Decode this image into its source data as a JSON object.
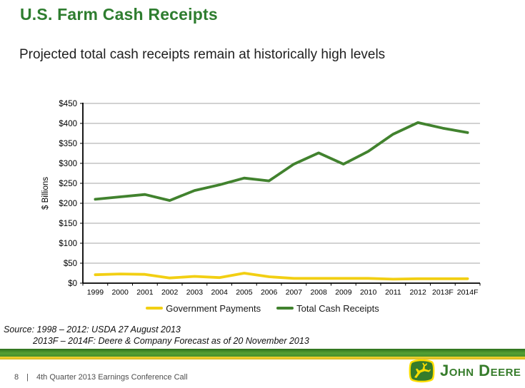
{
  "slide": {
    "title": "U.S. Farm Cash Receipts",
    "subtitle": "Projected total cash receipts remain at historically high levels"
  },
  "chart_data": {
    "type": "line",
    "title": "",
    "xlabel": "",
    "ylabel": "$ Billions",
    "ylim": [
      0,
      450
    ],
    "ytick_step": 50,
    "ytick_labels": [
      "$450",
      "$400",
      "$350",
      "$300",
      "$250",
      "$200",
      "$150",
      "$100",
      "$50",
      "$0"
    ],
    "categories": [
      "1999",
      "2000",
      "2001",
      "2002",
      "2003",
      "2004",
      "2005",
      "2006",
      "2007",
      "2008",
      "2009",
      "2010",
      "2011",
      "2012",
      "2013F",
      "2014F"
    ],
    "series": [
      {
        "name": "Government Payments",
        "color": "#F2CF13",
        "values": [
          21,
          23,
          22,
          13,
          17,
          14,
          25,
          16,
          12,
          12,
          12,
          12,
          10,
          11,
          11,
          11
        ]
      },
      {
        "name": "Total Cash Receipts",
        "color": "#41822E",
        "values": [
          210,
          216,
          222,
          207,
          232,
          246,
          263,
          256,
          298,
          326,
          298,
          330,
          373,
          402,
          388,
          377
        ]
      }
    ],
    "grid": true,
    "legend_position": "bottom"
  },
  "source": {
    "line1": "Source: 1998 – 2012: USDA 27 August 2013",
    "line2": "2013F – 2014F: Deere & Company Forecast as of 20 November 2013"
  },
  "footer": {
    "page_number": "8",
    "separator": "|",
    "label": "4th Quarter 2013 Earnings Conference Call",
    "brand": "John Deere"
  },
  "colors": {
    "title_green": "#2E7D2F",
    "brand_green": "#367C2B",
    "brand_yellow": "#FFDE00",
    "grid": "#A6A6A6",
    "axis": "#000000"
  }
}
